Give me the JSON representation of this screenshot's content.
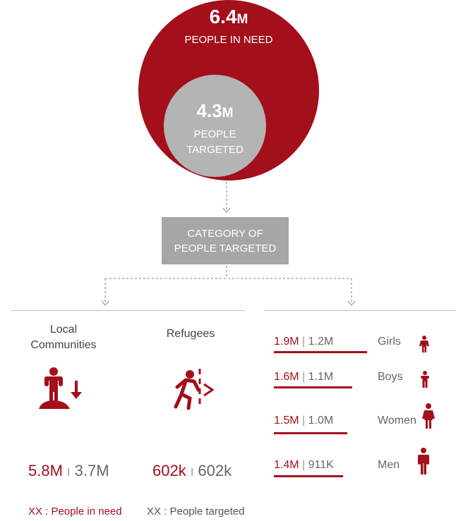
{
  "people_in_need": {
    "value": "6.4",
    "unit": "M",
    "label": "PEOPLE IN NEED"
  },
  "people_targeted": {
    "value": "4.3",
    "unit": "M",
    "label_line1": "PEOPLE",
    "label_line2": "TARGETED"
  },
  "category": {
    "line1": "CATEGORY OF",
    "line2": "PEOPLE TARGETED"
  },
  "groups": [
    {
      "title_line1": "Local",
      "title_line2": "Communities",
      "need": "5.8M",
      "sep": "I",
      "targeted": "3.7M"
    },
    {
      "title_line1": "Refugees",
      "need": "602k",
      "sep": "I",
      "targeted": "602k"
    }
  ],
  "demographics": [
    {
      "label": "Girls",
      "need": "1.9M",
      "sep": " | ",
      "targeted": "1.2M",
      "need_share": 1.0
    },
    {
      "label": "Boys",
      "need": "1.6M",
      "sep": " | ",
      "targeted": "1.1M",
      "need_share": 0.84
    },
    {
      "label": "Women",
      "need": "1.5M",
      "sep": " | ",
      "targeted": "1.0M",
      "need_share": 0.79
    },
    {
      "label": "Men",
      "need": "1.4M",
      "sep": " | ",
      "targeted": "911K",
      "need_share": 0.74
    }
  ],
  "legend": {
    "need": "XX : People in need",
    "targeted": "XX : People targeted"
  },
  "colors": {
    "need": "#a30f1a",
    "targeted_circle": "#b4b4b4",
    "box": "#a6a6a6"
  },
  "icons": [
    "person-standing-arrow-down-icon",
    "person-running-border-icon",
    "girl-icon",
    "boy-icon",
    "woman-icon",
    "man-icon"
  ]
}
